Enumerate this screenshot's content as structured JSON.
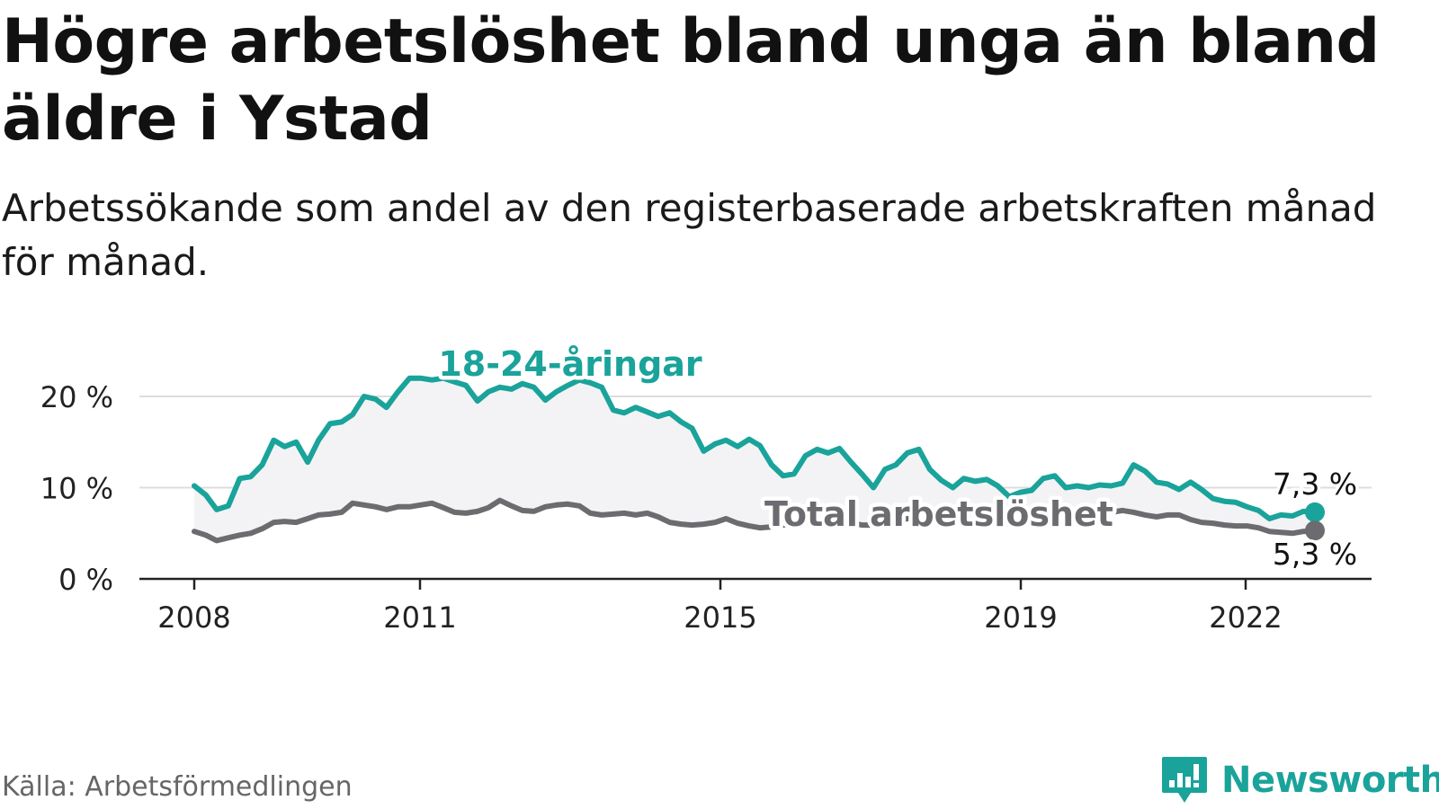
{
  "title": "Högre arbetslöshet bland unga än bland äldre i Ystad",
  "subtitle": "Arbetssökande som andel av den registerbaserade arbetskraften månad för månad.",
  "source": "Källa: Arbetsförmedlingen",
  "brand": {
    "name": "Newsworthy",
    "icon": "newsworthy-logo-icon",
    "color": "#1aa39a"
  },
  "colors": {
    "youth": "#1aa39a",
    "total": "#6b6b70",
    "fill": "#f3f3f5",
    "grid": "#dddddd"
  },
  "chart_data": {
    "type": "line",
    "title": "Högre arbetslöshet bland unga än bland äldre i Ystad",
    "xlabel": "",
    "ylabel": "",
    "ylim": [
      0,
      20
    ],
    "xlim": [
      2008,
      2022.9
    ],
    "x_ticks": [
      2008,
      2011,
      2015,
      2019,
      2022
    ],
    "x_tick_labels": [
      "2008",
      "2011",
      "2015",
      "2019",
      "2022"
    ],
    "y_ticks": [
      0,
      10,
      20
    ],
    "y_tick_labels": [
      "0 %",
      "10 %",
      "20 %"
    ],
    "grid": true,
    "series": [
      {
        "name": "18-24-åringar",
        "label": "18-24-åringar",
        "color": "#1aa39a",
        "end_label": "7,3 %",
        "points": [
          [
            2008.0,
            10.2
          ],
          [
            2008.17,
            9.2
          ],
          [
            2008.33,
            7.6
          ],
          [
            2008.5,
            8.0
          ],
          [
            2008.67,
            11.0
          ],
          [
            2008.83,
            11.2
          ],
          [
            2009.0,
            12.5
          ],
          [
            2009.17,
            15.2
          ],
          [
            2009.33,
            14.5
          ],
          [
            2009.5,
            15.0
          ],
          [
            2009.67,
            12.8
          ],
          [
            2009.83,
            15.2
          ],
          [
            2010.0,
            17.0
          ],
          [
            2010.17,
            17.2
          ],
          [
            2010.33,
            18.0
          ],
          [
            2010.5,
            20.0
          ],
          [
            2010.67,
            19.7
          ],
          [
            2010.83,
            18.8
          ],
          [
            2011.0,
            20.5
          ],
          [
            2011.17,
            22.0
          ],
          [
            2011.33,
            22.0
          ],
          [
            2011.5,
            21.8
          ],
          [
            2011.67,
            22.0
          ],
          [
            2011.83,
            21.6
          ],
          [
            2012.0,
            21.2
          ],
          [
            2012.17,
            19.5
          ],
          [
            2012.33,
            20.5
          ],
          [
            2012.5,
            21.0
          ],
          [
            2012.67,
            20.8
          ],
          [
            2012.83,
            21.4
          ],
          [
            2013.0,
            21.0
          ],
          [
            2013.17,
            19.6
          ],
          [
            2013.33,
            20.5
          ],
          [
            2013.5,
            21.2
          ],
          [
            2013.67,
            21.8
          ],
          [
            2013.83,
            21.5
          ],
          [
            2014.0,
            21.0
          ],
          [
            2014.17,
            18.5
          ],
          [
            2014.33,
            18.2
          ],
          [
            2014.5,
            18.8
          ],
          [
            2014.67,
            18.3
          ],
          [
            2014.83,
            17.8
          ],
          [
            2015.0,
            18.2
          ],
          [
            2015.17,
            17.2
          ],
          [
            2015.33,
            16.5
          ],
          [
            2015.5,
            14.0
          ],
          [
            2015.67,
            14.8
          ],
          [
            2015.83,
            15.2
          ],
          [
            2016.0,
            14.5
          ],
          [
            2016.17,
            15.3
          ],
          [
            2016.33,
            14.6
          ],
          [
            2016.5,
            12.5
          ],
          [
            2016.67,
            11.3
          ],
          [
            2016.83,
            11.5
          ],
          [
            2017.0,
            13.5
          ],
          [
            2017.17,
            14.2
          ],
          [
            2017.33,
            13.8
          ],
          [
            2017.5,
            14.3
          ],
          [
            2017.67,
            12.8
          ],
          [
            2017.83,
            11.5
          ],
          [
            2018.0,
            10.0
          ],
          [
            2018.17,
            12.0
          ],
          [
            2018.33,
            12.5
          ],
          [
            2018.5,
            13.8
          ],
          [
            2018.67,
            14.2
          ],
          [
            2018.83,
            12.0
          ],
          [
            2019.0,
            10.8
          ],
          [
            2019.17,
            10.0
          ],
          [
            2019.33,
            11.0
          ],
          [
            2019.5,
            10.7
          ],
          [
            2019.67,
            10.9
          ],
          [
            2019.83,
            10.2
          ],
          [
            2020.0,
            9.0
          ],
          [
            2020.17,
            9.5
          ],
          [
            2020.33,
            9.7
          ],
          [
            2020.5,
            11.0
          ],
          [
            2020.67,
            11.3
          ],
          [
            2020.83,
            10.0
          ],
          [
            2021.0,
            10.2
          ],
          [
            2021.17,
            10.0
          ],
          [
            2021.33,
            10.3
          ],
          [
            2021.5,
            10.2
          ],
          [
            2021.67,
            10.5
          ],
          [
            2021.83,
            12.5
          ],
          [
            2022.0,
            11.8
          ],
          [
            2022.17,
            10.6
          ],
          [
            2022.33,
            10.4
          ],
          [
            2022.5,
            9.8
          ],
          [
            2022.67,
            10.6
          ],
          [
            2022.83,
            9.8
          ],
          [
            2023.0,
            8.8
          ],
          [
            2023.17,
            8.5
          ],
          [
            2023.33,
            8.4
          ],
          [
            2023.5,
            7.9
          ],
          [
            2023.67,
            7.5
          ],
          [
            2023.83,
            6.6
          ],
          [
            2024.0,
            7.0
          ],
          [
            2024.17,
            6.9
          ],
          [
            2024.33,
            7.4
          ],
          [
            2024.5,
            7.3
          ]
        ]
      },
      {
        "name": "Total arbetslöshet",
        "label": "Total arbetslöshet",
        "color": "#6b6b70",
        "end_label": "5,3 %",
        "points": [
          [
            2008.0,
            5.2
          ],
          [
            2008.17,
            4.8
          ],
          [
            2008.33,
            4.2
          ],
          [
            2008.5,
            4.5
          ],
          [
            2008.67,
            4.8
          ],
          [
            2008.83,
            5.0
          ],
          [
            2009.0,
            5.5
          ],
          [
            2009.17,
            6.2
          ],
          [
            2009.33,
            6.3
          ],
          [
            2009.5,
            6.2
          ],
          [
            2009.67,
            6.6
          ],
          [
            2009.83,
            7.0
          ],
          [
            2010.0,
            7.1
          ],
          [
            2010.17,
            7.3
          ],
          [
            2010.33,
            8.3
          ],
          [
            2010.5,
            8.1
          ],
          [
            2010.67,
            7.9
          ],
          [
            2010.83,
            7.6
          ],
          [
            2011.0,
            7.9
          ],
          [
            2011.17,
            7.9
          ],
          [
            2011.33,
            8.1
          ],
          [
            2011.5,
            8.3
          ],
          [
            2011.67,
            7.8
          ],
          [
            2011.83,
            7.3
          ],
          [
            2012.0,
            7.2
          ],
          [
            2012.17,
            7.4
          ],
          [
            2012.33,
            7.8
          ],
          [
            2012.5,
            8.6
          ],
          [
            2012.67,
            8.0
          ],
          [
            2012.83,
            7.5
          ],
          [
            2013.0,
            7.4
          ],
          [
            2013.17,
            7.9
          ],
          [
            2013.33,
            8.1
          ],
          [
            2013.5,
            8.2
          ],
          [
            2013.67,
            8.0
          ],
          [
            2013.83,
            7.2
          ],
          [
            2014.0,
            7.0
          ],
          [
            2014.17,
            7.1
          ],
          [
            2014.33,
            7.2
          ],
          [
            2014.5,
            7.0
          ],
          [
            2014.67,
            7.2
          ],
          [
            2014.83,
            6.8
          ],
          [
            2015.0,
            6.2
          ],
          [
            2015.17,
            6.0
          ],
          [
            2015.33,
            5.9
          ],
          [
            2015.5,
            6.0
          ],
          [
            2015.67,
            6.2
          ],
          [
            2015.83,
            6.6
          ],
          [
            2016.0,
            6.1
          ],
          [
            2016.17,
            5.8
          ],
          [
            2016.33,
            5.6
          ],
          [
            2016.5,
            5.7
          ],
          [
            2016.67,
            5.9
          ],
          [
            2016.83,
            6.1
          ],
          [
            2017.0,
            6.2
          ],
          [
            2017.17,
            6.3
          ],
          [
            2017.33,
            6.5
          ],
          [
            2017.5,
            6.4
          ],
          [
            2017.67,
            6.2
          ],
          [
            2017.83,
            5.9
          ],
          [
            2018.0,
            5.9
          ],
          [
            2018.17,
            6.0
          ],
          [
            2018.33,
            6.3
          ],
          [
            2018.5,
            6.6
          ],
          [
            2018.67,
            6.6
          ],
          [
            2018.83,
            6.4
          ],
          [
            2019.0,
            6.2
          ],
          [
            2019.17,
            6.1
          ],
          [
            2019.33,
            6.3
          ],
          [
            2019.5,
            6.3
          ],
          [
            2019.67,
            6.4
          ],
          [
            2019.83,
            6.1
          ],
          [
            2020.0,
            6.0
          ],
          [
            2020.17,
            6.4
          ],
          [
            2020.33,
            6.7
          ],
          [
            2020.5,
            7.0
          ],
          [
            2020.67,
            7.2
          ],
          [
            2020.83,
            7.0
          ],
          [
            2021.0,
            7.0
          ],
          [
            2021.17,
            7.1
          ],
          [
            2021.33,
            7.2
          ],
          [
            2021.5,
            7.3
          ],
          [
            2021.67,
            7.5
          ],
          [
            2021.83,
            7.3
          ],
          [
            2022.0,
            7.0
          ],
          [
            2022.17,
            6.8
          ],
          [
            2022.33,
            7.0
          ],
          [
            2022.5,
            7.0
          ],
          [
            2022.67,
            6.5
          ],
          [
            2022.83,
            6.2
          ],
          [
            2023.0,
            6.1
          ],
          [
            2023.17,
            5.9
          ],
          [
            2023.33,
            5.8
          ],
          [
            2023.5,
            5.8
          ],
          [
            2023.67,
            5.6
          ],
          [
            2023.83,
            5.2
          ],
          [
            2024.0,
            5.1
          ],
          [
            2024.17,
            5.0
          ],
          [
            2024.33,
            5.2
          ],
          [
            2024.5,
            5.3
          ]
        ]
      }
    ]
  }
}
